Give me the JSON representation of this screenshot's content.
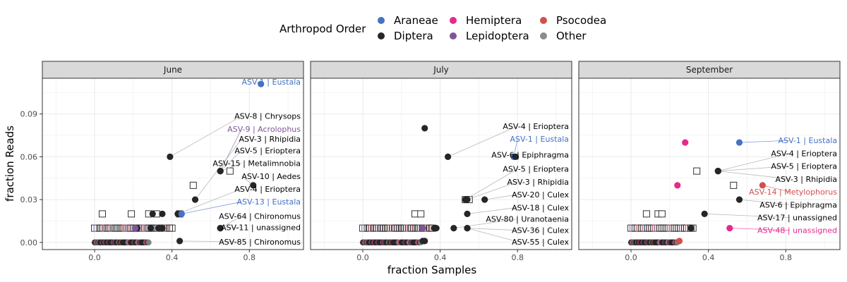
{
  "legend": {
    "title": "Arthropod Order",
    "items": [
      {
        "name": "Araneae",
        "color": "#4472c4"
      },
      {
        "name": "Hemiptera",
        "color": "#e6298b"
      },
      {
        "name": "Psocodea",
        "color": "#d1504d"
      },
      {
        "name": "Diptera",
        "color": "#262626"
      },
      {
        "name": "Lepidoptera",
        "color": "#7e5699"
      },
      {
        "name": "Other",
        "color": "#8c8c8c"
      }
    ]
  },
  "chart_data": {
    "type": "scatter",
    "xlabel": "fraction Samples",
    "ylabel": "fraction Reads",
    "xlim": [
      -0.27,
      1.08
    ],
    "ylim": [
      -0.005,
      0.115
    ],
    "x_ticks": [
      0.0,
      0.4,
      0.8
    ],
    "x_tick_labels": [
      "0.0",
      "0.4",
      "0.8"
    ],
    "y_ticks": [
      0.0,
      0.03,
      0.06,
      0.09
    ],
    "y_tick_labels": [
      "0.00",
      "0.03",
      "0.06",
      "0.09"
    ],
    "grid": true,
    "legend_position": "top",
    "facets": [
      {
        "name": "June",
        "labeled": [
          {
            "label": "ASV-1 | Eustala",
            "order": "Araneae",
            "x": 0.86,
            "y": 0.111,
            "lx": 0.85,
            "ly": 0.111
          },
          {
            "label": "ASV-8 | Chrysops",
            "order": "Diptera",
            "x": 0.39,
            "y": 0.06,
            "lx": 0.76,
            "ly": 0.087
          },
          {
            "label": "ASV-9 | Acrolophus",
            "order": "Lepidoptera",
            "x": 0.65,
            "y": 0.05,
            "lx": 0.76,
            "ly": 0.078
          },
          {
            "label": "ASV-3 | Rhipidia",
            "order": "Diptera",
            "x": 0.52,
            "y": 0.03,
            "lx": 0.76,
            "ly": 0.071
          },
          {
            "label": "ASV-5 | Erioptera",
            "order": "Diptera",
            "x": 0.65,
            "y": 0.05,
            "lx": 0.76,
            "ly": 0.063
          },
          {
            "label": "ASV-15 | Metalimnobia",
            "order": "Diptera",
            "x": 0.65,
            "y": 0.05,
            "lx": 0.76,
            "ly": 0.054
          },
          {
            "label": "ASV-10 | Aedes",
            "order": "Diptera",
            "x": 0.82,
            "y": 0.04,
            "lx": 0.76,
            "ly": 0.045
          },
          {
            "label": "ASV-4 | Erioptera",
            "order": "Diptera",
            "x": 0.43,
            "y": 0.02,
            "lx": 0.76,
            "ly": 0.036
          },
          {
            "label": "ASV-13 | Eustala",
            "order": "Araneae",
            "x": 0.45,
            "y": 0.02,
            "lx": 0.76,
            "ly": 0.027
          },
          {
            "label": "ASV-64 | Chironomus",
            "order": "Diptera",
            "x": 0.65,
            "y": 0.01,
            "lx": 0.76,
            "ly": 0.017
          },
          {
            "label": "ASV-11 | unassigned",
            "order": "Diptera",
            "x": 0.65,
            "y": 0.01,
            "lx": 0.76,
            "ly": 0.009
          },
          {
            "label": "ASV-85 | Chironomus",
            "order": "Diptera",
            "x": 0.44,
            "y": 0.001,
            "lx": 0.76,
            "ly": -0.001
          }
        ],
        "points": [
          {
            "order": "Diptera",
            "x": 0.3,
            "y": 0.02
          },
          {
            "order": "Diptera",
            "x": 0.35,
            "y": 0.02
          },
          {
            "order": "Diptera",
            "x": 0.29,
            "y": 0.01
          },
          {
            "order": "Diptera",
            "x": 0.33,
            "y": 0.01
          },
          {
            "order": "Diptera",
            "x": 0.35,
            "y": 0.01
          },
          {
            "order": "Diptera",
            "x": 0.22,
            "y": 0.01
          },
          {
            "order": "Lepidoptera",
            "x": 0.21,
            "y": 0.01
          }
        ],
        "squares": [
          {
            "x": 0.04,
            "y": 0.02
          },
          {
            "x": 0.19,
            "y": 0.02
          },
          {
            "x": 0.28,
            "y": 0.02
          },
          {
            "x": 0.32,
            "y": 0.02
          },
          {
            "x": 0.44,
            "y": 0.02
          },
          {
            "x": 0.51,
            "y": 0.04
          },
          {
            "x": 0.7,
            "y": 0.05
          }
        ],
        "strip_reads": 0.01,
        "strip_x": [
          0.0,
          0.4
        ],
        "base_x": [
          0.0,
          0.28
        ]
      },
      {
        "name": "July",
        "labeled": [
          {
            "label": "ASV-4 | Erioptera",
            "order": "Diptera",
            "x": 0.44,
            "y": 0.06,
            "lx": 0.8,
            "ly": 0.08
          },
          {
            "label": "ASV-1 | Eustala",
            "order": "Araneae",
            "x": 0.78,
            "y": 0.06,
            "lx": 0.8,
            "ly": 0.071
          },
          {
            "label": "ASV-6 | Epiphragma",
            "order": "Diptera",
            "x": 0.79,
            "y": 0.06,
            "lx": 0.8,
            "ly": 0.06
          },
          {
            "label": "ASV-5 | Erioptera",
            "order": "Diptera",
            "x": 0.53,
            "y": 0.03,
            "lx": 0.8,
            "ly": 0.05
          },
          {
            "label": "ASV-3 | Rhipidia",
            "order": "Diptera",
            "x": 0.54,
            "y": 0.03,
            "lx": 0.8,
            "ly": 0.041
          },
          {
            "label": "ASV-20 | Culex",
            "order": "Diptera",
            "x": 0.63,
            "y": 0.03,
            "lx": 0.8,
            "ly": 0.032
          },
          {
            "label": "ASV-18 | Culex",
            "order": "Diptera",
            "x": 0.54,
            "y": 0.02,
            "lx": 0.8,
            "ly": 0.023
          },
          {
            "label": "ASV-80 | Uranotaenia",
            "order": "Diptera",
            "x": 0.47,
            "y": 0.01,
            "lx": 0.8,
            "ly": 0.015
          },
          {
            "label": "ASV-36 | Culex",
            "order": "Diptera",
            "x": 0.54,
            "y": 0.01,
            "lx": 0.8,
            "ly": 0.007
          },
          {
            "label": "ASV-55 | Culex",
            "order": "Diptera",
            "x": 0.54,
            "y": 0.01,
            "lx": 0.8,
            "ly": -0.001
          }
        ],
        "points": [
          {
            "order": "Diptera",
            "x": 0.32,
            "y": 0.08
          },
          {
            "order": "Diptera",
            "x": 0.37,
            "y": 0.01
          },
          {
            "order": "Diptera",
            "x": 0.38,
            "y": 0.01
          },
          {
            "order": "Lepidoptera",
            "x": 0.31,
            "y": 0.01
          },
          {
            "order": "Diptera",
            "x": 0.31,
            "y": 0.001
          },
          {
            "order": "Diptera",
            "x": 0.32,
            "y": 0.001
          }
        ],
        "squares": [
          {
            "x": 0.27,
            "y": 0.02
          },
          {
            "x": 0.3,
            "y": 0.02
          },
          {
            "x": 0.53,
            "y": 0.03
          },
          {
            "x": 0.55,
            "y": 0.03
          }
        ],
        "strip_reads": 0.01,
        "strip_x": [
          0.0,
          0.36
        ],
        "base_x": [
          0.0,
          0.3
        ]
      },
      {
        "name": "September",
        "labeled": [
          {
            "label": "ASV-1 | Eustala",
            "order": "Araneae",
            "x": 0.56,
            "y": 0.07,
            "lx": 0.82,
            "ly": 0.07
          },
          {
            "label": "ASV-4 | Erioptera",
            "order": "Diptera",
            "x": 0.45,
            "y": 0.05,
            "lx": 0.82,
            "ly": 0.061
          },
          {
            "label": "ASV-5 | Erioptera",
            "order": "Diptera",
            "x": 0.45,
            "y": 0.05,
            "lx": 0.82,
            "ly": 0.052
          },
          {
            "label": "ASV-3 | Rhipidia",
            "order": "Diptera",
            "x": 0.45,
            "y": 0.05,
            "lx": 0.82,
            "ly": 0.043
          },
          {
            "label": "ASV-14 | Metylophorus",
            "order": "Psocodea",
            "x": 0.68,
            "y": 0.04,
            "lx": 0.82,
            "ly": 0.034
          },
          {
            "label": "ASV-6 | Epiphragma",
            "order": "Diptera",
            "x": 0.56,
            "y": 0.03,
            "lx": 0.82,
            "ly": 0.025
          },
          {
            "label": "ASV-17 | unassigned",
            "order": "Diptera",
            "x": 0.38,
            "y": 0.02,
            "lx": 0.82,
            "ly": 0.016
          },
          {
            "label": "ASV-48 | unassigned",
            "order": "Hemiptera",
            "x": 0.51,
            "y": 0.01,
            "lx": 0.82,
            "ly": 0.007
          }
        ],
        "points": [
          {
            "order": "Hemiptera",
            "x": 0.28,
            "y": 0.07
          },
          {
            "order": "Hemiptera",
            "x": 0.24,
            "y": 0.04
          },
          {
            "order": "Diptera",
            "x": 0.31,
            "y": 0.01
          },
          {
            "order": "Psocodea",
            "x": 0.25,
            "y": 0.001
          }
        ],
        "squares": [
          {
            "x": 0.34,
            "y": 0.05
          },
          {
            "x": 0.53,
            "y": 0.04
          },
          {
            "x": 0.08,
            "y": 0.02
          },
          {
            "x": 0.14,
            "y": 0.02
          },
          {
            "x": 0.16,
            "y": 0.02
          }
        ],
        "strip_reads": 0.01,
        "strip_x": [
          0.0,
          0.32
        ],
        "base_x": [
          0.0,
          0.24
        ]
      }
    ]
  }
}
